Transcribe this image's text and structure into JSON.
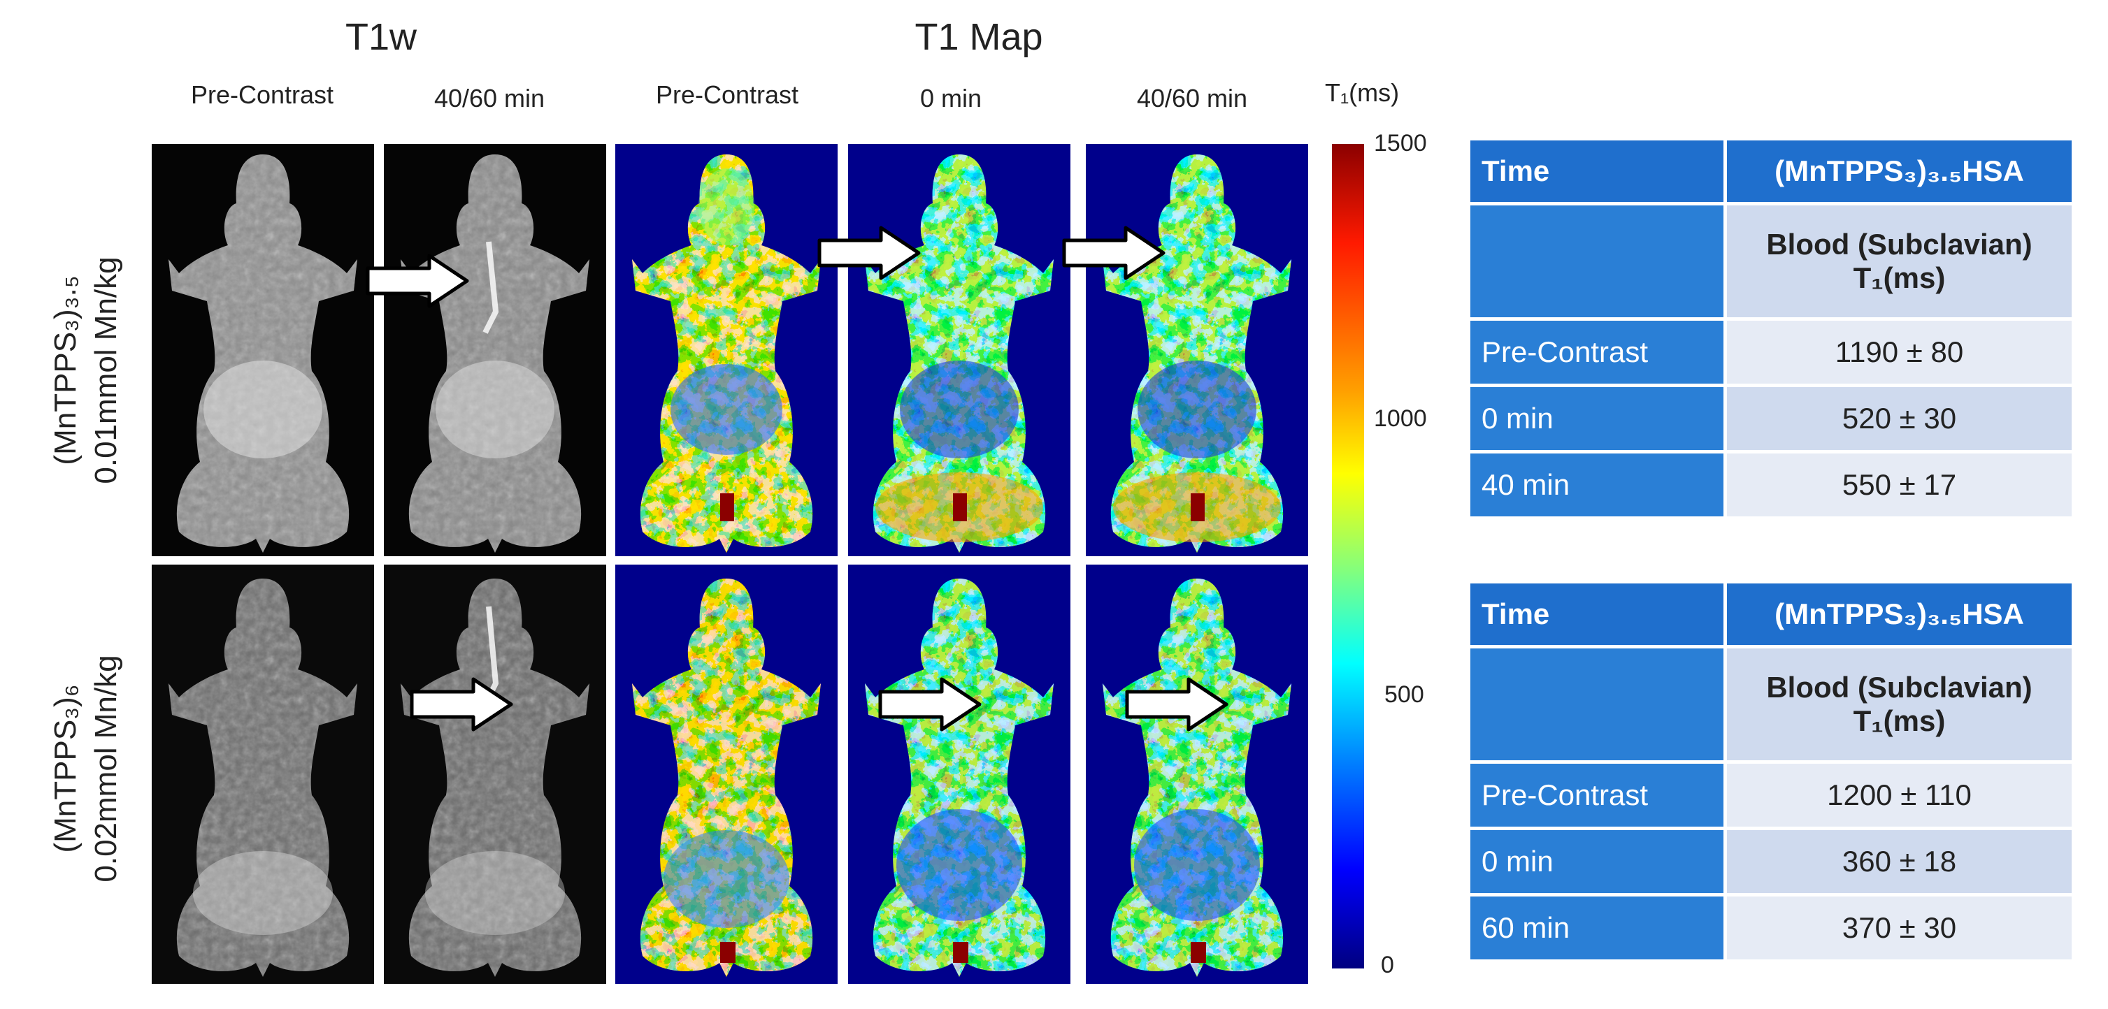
{
  "headers": {
    "t1w": "T1w",
    "t1map": "T1 Map"
  },
  "columns": [
    "Pre-Contrast",
    "40/60 min",
    "Pre-Contrast",
    "0 min",
    "40/60 min"
  ],
  "colorbar": {
    "unit_html": "T₁(ms)",
    "ticks": [
      "1500",
      "1000",
      "500",
      "0"
    ],
    "colors": [
      "#8b0000",
      "#ff2000",
      "#ffa000",
      "#ffff00",
      "#80ff80",
      "#00ffff",
      "#0080ff",
      "#0000ff",
      "#000080"
    ]
  },
  "rows": [
    {
      "line1": "(MnTPPS₃)₃.₅",
      "line2": "0.01mmol Mn/kg"
    },
    {
      "line1": "(MnTPPS₃)₆",
      "line2": "0.02mmol Mn/kg"
    }
  ],
  "tables": [
    {
      "col1": "Time",
      "col2": "(MnTPPS₃)₃.₅HSA",
      "sub_line1": "Blood (Subclavian)",
      "sub_line2": "T₁(ms)",
      "rows": [
        {
          "time": "Pre-Contrast",
          "value": "1190 ± 80"
        },
        {
          "time": "0 min",
          "value": "520 ± 30"
        },
        {
          "time": "40 min",
          "value": "550 ± 17"
        }
      ]
    },
    {
      "col1": "Time",
      "col2": "(MnTPPS₃)₃.₅HSA",
      "sub_line1": "Blood (Subclavian)",
      "sub_line2": "T₁(ms)",
      "rows": [
        {
          "time": "Pre-Contrast",
          "value": "1200 ± 110"
        },
        {
          "time": "0 min",
          "value": "360 ± 18"
        },
        {
          "time": "60 min",
          "value": "370 ± 30"
        }
      ]
    }
  ]
}
